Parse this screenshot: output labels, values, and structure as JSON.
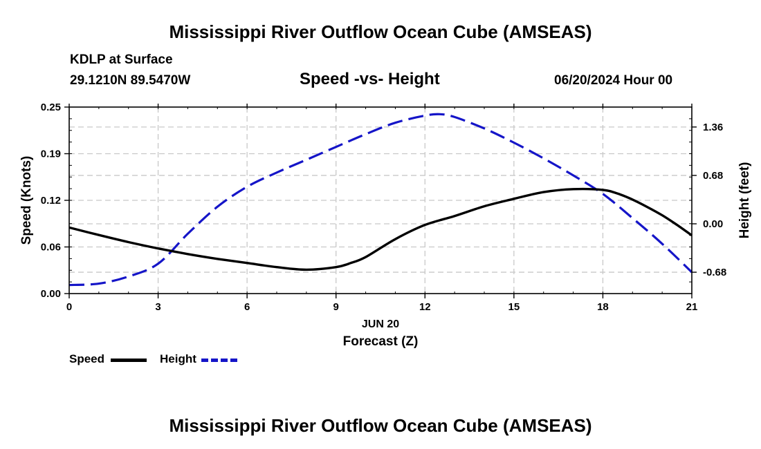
{
  "header": {
    "title": "Mississippi River Outflow Ocean Cube (AMSEAS)",
    "station": "KDLP at Surface",
    "coords": "29.1210N  89.5470W",
    "subtitle": "Speed -vs- Height",
    "datetime": "06/20/2024 Hour 00"
  },
  "footer": {
    "title": "Mississippi River Outflow Ocean Cube (AMSEAS)"
  },
  "legend": {
    "speed_label": "Speed",
    "height_label": "Height"
  },
  "colors": {
    "speed": "#000000",
    "height": "#1515c8",
    "grid": "#c8c8c8"
  },
  "chart_data": {
    "type": "line",
    "title": "Speed -vs- Height",
    "xlabel": "Forecast (Z)",
    "date_label": "JUN 20",
    "ylabel": "Speed (Knots)",
    "y2label": "Height (feet)",
    "xlim": [
      0,
      21
    ],
    "ylim": [
      0,
      0.25
    ],
    "y2lim": [
      -0.98,
      1.64
    ],
    "x_ticks": [
      0,
      3,
      6,
      9,
      12,
      15,
      18,
      21
    ],
    "y_ticks": [
      "0.00",
      "0.06",
      "0.12",
      "0.19",
      "0.25"
    ],
    "y2_ticks": [
      "-0.68",
      "0.00",
      "0.68",
      "1.36"
    ],
    "series": [
      {
        "name": "Speed",
        "axis": "left",
        "style": "solid",
        "x": [
          0,
          1,
          2,
          3,
          4,
          5,
          6,
          7,
          8,
          9,
          9.5,
          10,
          11,
          12,
          13,
          14,
          15,
          16,
          17,
          18,
          18.5,
          19,
          19.5,
          20,
          20.5,
          21
        ],
        "values": [
          0.0885,
          0.0785,
          0.069,
          0.0605,
          0.053,
          0.0465,
          0.041,
          0.0355,
          0.032,
          0.0355,
          0.041,
          0.049,
          0.073,
          0.092,
          0.104,
          0.117,
          0.127,
          0.136,
          0.14,
          0.139,
          0.134,
          0.126,
          0.116,
          0.105,
          0.092,
          0.078
        ]
      },
      {
        "name": "Height",
        "axis": "right",
        "style": "dashed",
        "x": [
          0,
          1,
          2,
          3,
          4,
          5,
          6,
          7,
          8,
          9,
          10,
          11,
          12,
          12.5,
          13,
          14,
          15,
          16,
          17,
          18,
          19,
          20,
          21
        ],
        "values": [
          -0.86,
          -0.84,
          -0.74,
          -0.56,
          -0.14,
          0.24,
          0.52,
          0.72,
          0.9,
          1.08,
          1.26,
          1.42,
          1.52,
          1.54,
          1.5,
          1.34,
          1.14,
          0.92,
          0.68,
          0.42,
          0.08,
          -0.28,
          -0.68
        ]
      }
    ]
  }
}
